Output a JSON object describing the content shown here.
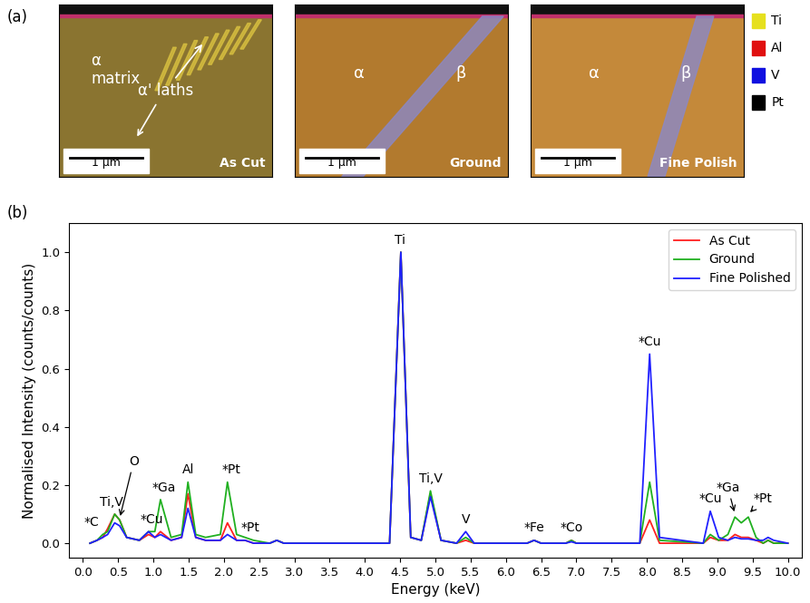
{
  "panel_labels": [
    "(a)",
    "(b)"
  ],
  "micrographs": [
    {
      "title": "As Cut",
      "scale_bar": "1 µm",
      "texts": [
        "α\nmatrix",
        "α' laths"
      ]
    },
    {
      "title": "Ground",
      "scale_bar": "1 µm",
      "texts": [
        "α",
        "β"
      ]
    },
    {
      "title": "Fine Polish",
      "scale_bar": "1 µm",
      "texts": [
        "α",
        "β"
      ]
    }
  ],
  "element_key": [
    {
      "name": "Ti",
      "color": "#e6e01e"
    },
    {
      "name": "Al",
      "color": "#e01010"
    },
    {
      "name": "V",
      "color": "#1010e0"
    },
    {
      "name": "Pt",
      "color": "#000000"
    }
  ],
  "chart_data": {
    "type": "line",
    "xlabel": "Energy (keV)",
    "ylabel": "Normalised Intensity (counts/counts)",
    "xlim": [
      -0.2,
      10.2
    ],
    "xticks": [
      0.0,
      0.5,
      1.0,
      1.5,
      2.0,
      2.5,
      3.0,
      3.5,
      4.0,
      4.5,
      5.0,
      5.5,
      6.0,
      6.5,
      7.0,
      7.5,
      8.0,
      8.5,
      9.0,
      9.5,
      10.0
    ],
    "ylim": [
      -0.05,
      1.1
    ],
    "yticks": [
      0.0,
      0.2,
      0.4,
      0.6,
      0.8,
      1.0
    ],
    "grid": false,
    "legend": "upper right",
    "x": [
      0.1,
      0.2,
      0.28,
      0.35,
      0.45,
      0.52,
      0.62,
      0.8,
      0.93,
      1.02,
      1.1,
      1.25,
      1.4,
      1.49,
      1.6,
      1.74,
      1.95,
      2.05,
      2.18,
      2.3,
      2.42,
      2.65,
      2.75,
      2.85,
      3.0,
      4.35,
      4.51,
      4.65,
      4.8,
      4.93,
      5.08,
      5.3,
      5.43,
      5.55,
      6.3,
      6.4,
      6.5,
      6.85,
      6.93,
      7.0,
      7.9,
      8.04,
      8.18,
      8.8,
      8.9,
      9.02,
      9.15,
      9.25,
      9.34,
      9.44,
      9.55,
      9.65,
      9.72,
      9.8,
      10.0
    ],
    "series": [
      {
        "name": "As Cut",
        "color": "#ff2020",
        "values": [
          0.0,
          0.01,
          0.02,
          0.05,
          0.1,
          0.08,
          0.02,
          0.01,
          0.03,
          0.02,
          0.04,
          0.01,
          0.02,
          0.17,
          0.02,
          0.01,
          0.01,
          0.07,
          0.01,
          0.01,
          0.0,
          0.0,
          0.01,
          0.0,
          0.0,
          0.0,
          1.0,
          0.02,
          0.01,
          0.17,
          0.01,
          0.0,
          0.01,
          0.0,
          0.0,
          0.01,
          0.0,
          0.0,
          0.01,
          0.0,
          0.0,
          0.08,
          0.0,
          0.0,
          0.02,
          0.01,
          0.01,
          0.03,
          0.02,
          0.02,
          0.01,
          0.0,
          0.01,
          0.0,
          0.0
        ]
      },
      {
        "name": "Ground",
        "color": "#20b020",
        "values": [
          0.0,
          0.01,
          0.03,
          0.04,
          0.1,
          0.08,
          0.02,
          0.01,
          0.04,
          0.04,
          0.15,
          0.02,
          0.03,
          0.21,
          0.03,
          0.02,
          0.03,
          0.21,
          0.03,
          0.02,
          0.01,
          0.0,
          0.01,
          0.0,
          0.0,
          0.0,
          1.0,
          0.02,
          0.01,
          0.18,
          0.01,
          0.0,
          0.02,
          0.0,
          0.0,
          0.01,
          0.0,
          0.0,
          0.01,
          0.0,
          0.0,
          0.21,
          0.01,
          0.0,
          0.03,
          0.01,
          0.03,
          0.09,
          0.07,
          0.09,
          0.02,
          0.0,
          0.01,
          0.0,
          0.0
        ]
      },
      {
        "name": "Fine Polished",
        "color": "#2020ff",
        "values": [
          0.0,
          0.01,
          0.02,
          0.03,
          0.07,
          0.06,
          0.02,
          0.01,
          0.04,
          0.02,
          0.03,
          0.01,
          0.02,
          0.12,
          0.02,
          0.01,
          0.01,
          0.03,
          0.01,
          0.01,
          0.0,
          0.0,
          0.01,
          0.0,
          0.0,
          0.0,
          1.0,
          0.02,
          0.01,
          0.16,
          0.01,
          0.0,
          0.04,
          0.0,
          0.0,
          0.01,
          0.0,
          0.0,
          0.005,
          0.0,
          0.0,
          0.65,
          0.02,
          0.0,
          0.11,
          0.02,
          0.01,
          0.02,
          0.015,
          0.015,
          0.01,
          0.01,
          0.02,
          0.01,
          0.0
        ]
      }
    ],
    "annotations": [
      {
        "text": "*C",
        "x": 0.12,
        "y": 0.05
      },
      {
        "text": "Ti,V",
        "x": 0.4,
        "y": 0.12
      },
      {
        "text": "O",
        "x": 0.72,
        "y": 0.26,
        "arrow_to": [
          0.52,
          0.085
        ]
      },
      {
        "text": "*Cu",
        "x": 0.98,
        "y": 0.06
      },
      {
        "text": "*Ga",
        "x": 1.15,
        "y": 0.17
      },
      {
        "text": "Al",
        "x": 1.5,
        "y": 0.23
      },
      {
        "text": "*Pt",
        "x": 2.1,
        "y": 0.23
      },
      {
        "text": "*Pt",
        "x": 2.38,
        "y": 0.03
      },
      {
        "text": "Ti",
        "x": 4.5,
        "y": 1.02
      },
      {
        "text": "Ti,V",
        "x": 4.93,
        "y": 0.2
      },
      {
        "text": "V",
        "x": 5.43,
        "y": 0.06
      },
      {
        "text": "*Fe",
        "x": 6.4,
        "y": 0.03
      },
      {
        "text": "*Co",
        "x": 6.93,
        "y": 0.03
      },
      {
        "text": "*Cu",
        "x": 8.04,
        "y": 0.67
      },
      {
        "text": "*Cu",
        "x": 8.9,
        "y": 0.13
      },
      {
        "text": "*Ga",
        "x": 9.15,
        "y": 0.17,
        "arrow_to": [
          9.25,
          0.1
        ]
      },
      {
        "text": "*Pt",
        "x": 9.65,
        "y": 0.13,
        "arrow_to": [
          9.44,
          0.1
        ]
      }
    ]
  }
}
